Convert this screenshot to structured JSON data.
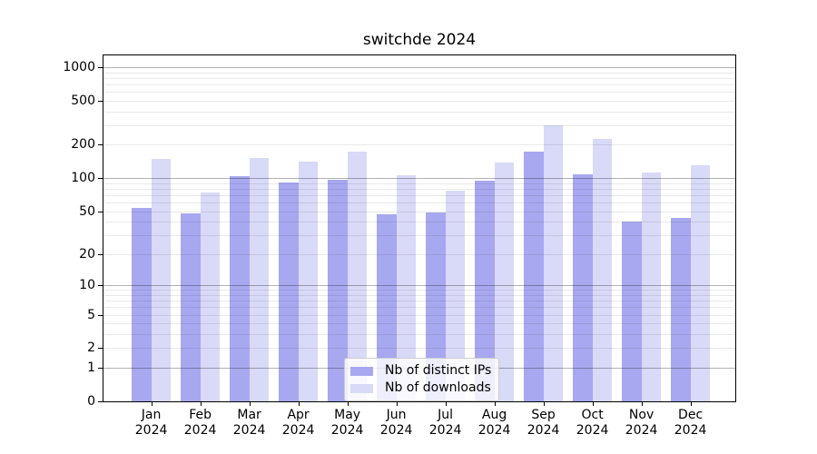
{
  "chart_data": {
    "type": "bar",
    "title": "switchde 2024",
    "categories": [
      "Jan",
      "Feb",
      "Mar",
      "Apr",
      "May",
      "Jun",
      "Jul",
      "Aug",
      "Sep",
      "Oct",
      "Nov",
      "Dec"
    ],
    "x_axis": {
      "year": "2024"
    },
    "y_axis": {
      "scale": "log1p",
      "ylim": [
        0,
        1275
      ],
      "ticks": [
        0,
        1,
        2,
        5,
        10,
        20,
        50,
        100,
        200,
        500,
        1000
      ]
    },
    "series": [
      {
        "name": "Nb of distinct IPs",
        "color": "#a8a8f0",
        "values": [
          54,
          48,
          104,
          91,
          96,
          47,
          49,
          94,
          172,
          108,
          40,
          43
        ]
      },
      {
        "name": "Nb of downloads",
        "color": "#d9d9f8",
        "values": [
          148,
          74,
          151,
          140,
          172,
          106,
          77,
          137,
          300,
          224,
          112,
          130
        ]
      }
    ],
    "legend": {
      "position": "lower-center",
      "items": [
        "Nb of distinct IPs",
        "Nb of downloads"
      ]
    },
    "grid": true
  }
}
